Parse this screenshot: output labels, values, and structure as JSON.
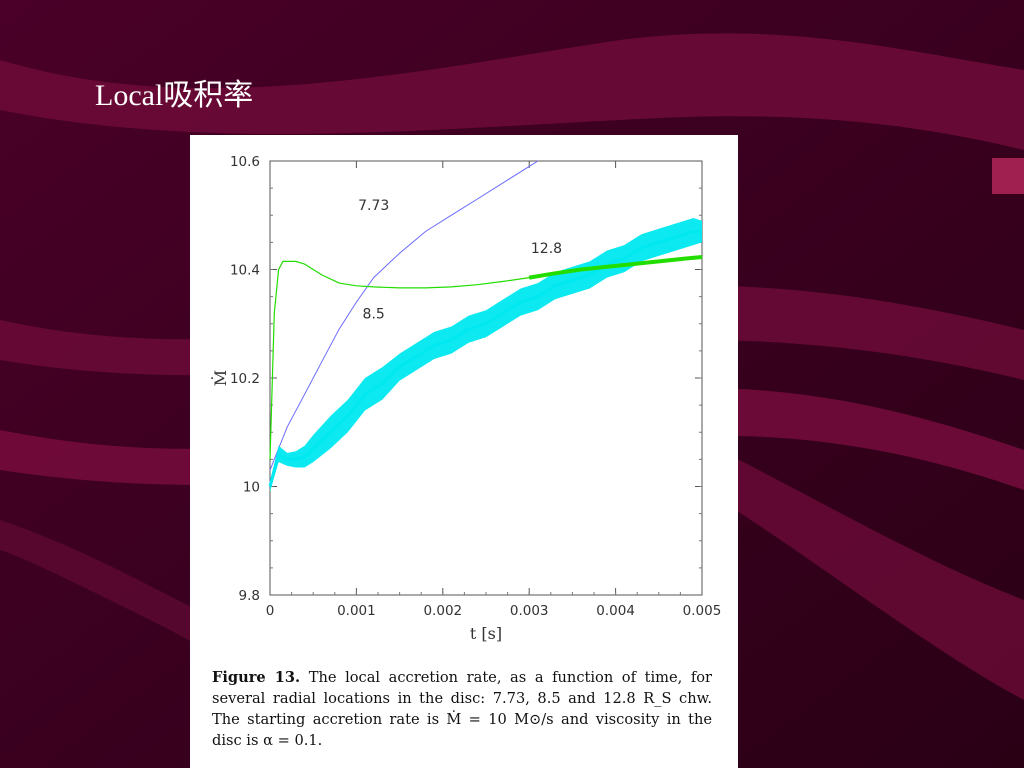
{
  "slide": {
    "title": "Local吸积率"
  },
  "colors": {
    "background": "#3a0020",
    "swoosh": "#7a0a3c",
    "series_7_73": "#6a6aff",
    "series_8_5": "#00e8f0",
    "series_12_8": "#22dd00"
  },
  "chart_data": {
    "type": "line",
    "title": "",
    "xlabel": "t [s]",
    "ylabel": "Ṁ",
    "xlim": [
      0,
      0.005
    ],
    "ylim": [
      9.8,
      10.6
    ],
    "xticks": [
      "0",
      "0.001",
      "0.002",
      "0.003",
      "0.004",
      "0.005"
    ],
    "yticks": [
      "9.8",
      "10",
      "10.2",
      "10.4",
      "10.6"
    ],
    "grid": false,
    "series": [
      {
        "name": "7.73",
        "color": "#6a6aff",
        "x": [
          0,
          0.0001,
          0.0002,
          0.0004,
          0.0006,
          0.0008,
          0.001,
          0.0012,
          0.0015,
          0.0018,
          0.0021,
          0.0024,
          0.0027,
          0.003,
          0.0031
        ],
        "y": [
          10.03,
          10.07,
          10.11,
          10.17,
          10.23,
          10.29,
          10.34,
          10.385,
          10.43,
          10.47,
          10.5,
          10.53,
          10.56,
          10.59,
          10.6
        ]
      },
      {
        "name": "8.5",
        "color": "#00e8f0",
        "x": [
          0,
          0.0001,
          0.0002,
          0.0003,
          0.0004,
          0.0005,
          0.0007,
          0.0009,
          0.0011,
          0.0013,
          0.0015,
          0.0017,
          0.0019,
          0.0021,
          0.0023,
          0.0025,
          0.0027,
          0.0029,
          0.0031,
          0.0033,
          0.0035,
          0.0037,
          0.0039,
          0.0041,
          0.0043,
          0.0045,
          0.0047,
          0.0049,
          0.005
        ],
        "y": [
          10.0,
          10.06,
          10.05,
          10.05,
          10.055,
          10.07,
          10.1,
          10.13,
          10.17,
          10.19,
          10.22,
          10.24,
          10.26,
          10.27,
          10.29,
          10.3,
          10.32,
          10.34,
          10.35,
          10.37,
          10.38,
          10.39,
          10.41,
          10.42,
          10.44,
          10.45,
          10.46,
          10.47,
          10.47
        ],
        "spread": [
          0.01,
          0.015,
          0.012,
          0.015,
          0.02,
          0.025,
          0.03,
          0.03,
          0.03,
          0.03,
          0.025,
          0.025,
          0.025,
          0.025,
          0.025,
          0.025,
          0.025,
          0.025,
          0.025,
          0.025,
          0.025,
          0.025,
          0.025,
          0.025,
          0.025,
          0.025,
          0.025,
          0.025,
          0.02
        ]
      },
      {
        "name": "12.8",
        "color": "#22dd00",
        "x": [
          0,
          5e-05,
          0.0001,
          0.00015,
          0.0002,
          0.0003,
          0.0004,
          0.0005,
          0.0006,
          0.0008,
          0.001,
          0.0012,
          0.0015,
          0.0018,
          0.0021,
          0.0024,
          0.0027,
          0.003,
          0.0033,
          0.0036,
          0.0039,
          0.0042,
          0.0045,
          0.0048,
          0.005
        ],
        "y": [
          10.05,
          10.32,
          10.4,
          10.415,
          10.415,
          10.415,
          10.41,
          10.4,
          10.39,
          10.375,
          10.37,
          10.368,
          10.366,
          10.366,
          10.368,
          10.372,
          10.378,
          10.385,
          10.393,
          10.4,
          10.405,
          10.41,
          10.415,
          10.42,
          10.423
        ]
      }
    ],
    "annotations": [
      "7.73",
      "8.5",
      "12.8"
    ]
  },
  "caption": {
    "label": "Figure 13.",
    "text": "The local accretion rate, as a function of time, for several radial locations in the disc: 7.73, 8.5 and 12.8 R_S chw. The starting accretion rate is Ṁ = 10 M⊙/s and viscosity in the disc is α = 0.1."
  }
}
